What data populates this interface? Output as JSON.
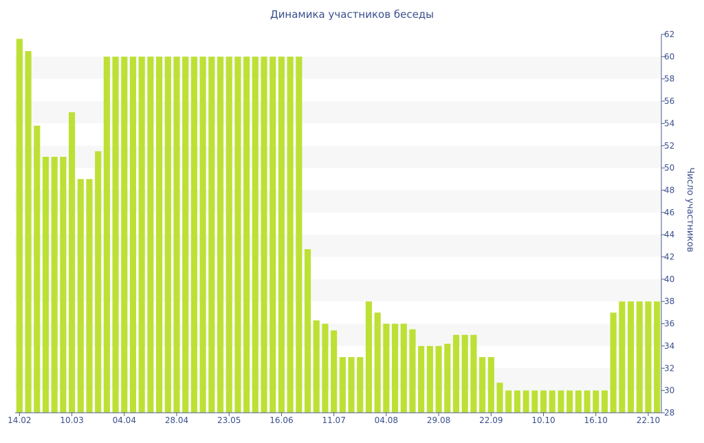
{
  "chart_data": {
    "type": "bar",
    "title": "Динамика участников беседы",
    "ylabel": "Число участников",
    "xlabel": "",
    "ylim": [
      28,
      62
    ],
    "yticks": [
      28,
      30,
      32,
      34,
      36,
      38,
      40,
      42,
      44,
      46,
      48,
      50,
      52,
      54,
      56,
      58,
      60,
      62
    ],
    "y_axis_side": "right",
    "grid": "alternating horizontal bands",
    "bar_color": "#bde035",
    "xtick_labels": [
      {
        "index": 0,
        "label": "14.02"
      },
      {
        "index": 6,
        "label": "10.03"
      },
      {
        "index": 12,
        "label": "04.04"
      },
      {
        "index": 18,
        "label": "28.04"
      },
      {
        "index": 24,
        "label": "23.05"
      },
      {
        "index": 30,
        "label": "16.06"
      },
      {
        "index": 36,
        "label": "11.07"
      },
      {
        "index": 42,
        "label": "04.08"
      },
      {
        "index": 48,
        "label": "29.08"
      },
      {
        "index": 54,
        "label": "22.09"
      },
      {
        "index": 60,
        "label": "10.10"
      },
      {
        "index": 66,
        "label": "16.10"
      },
      {
        "index": 72,
        "label": "22.10"
      }
    ],
    "values": [
      61.6,
      60.5,
      53.8,
      51,
      51,
      51,
      55,
      49,
      49,
      51.5,
      60,
      60,
      60,
      60,
      60,
      60,
      60,
      60,
      60,
      60,
      60,
      60,
      60,
      60,
      60,
      60,
      60,
      60,
      60,
      60,
      60,
      60,
      60,
      42.7,
      36.3,
      36,
      35.4,
      33,
      33,
      33,
      38,
      37,
      36,
      36,
      36,
      35.5,
      34,
      34,
      34,
      34.2,
      35,
      35,
      35,
      33,
      33,
      30.7,
      30,
      30,
      30,
      30,
      30,
      30,
      30,
      30,
      30,
      30,
      30,
      30,
      37,
      38,
      38,
      38,
      38,
      38
    ]
  }
}
